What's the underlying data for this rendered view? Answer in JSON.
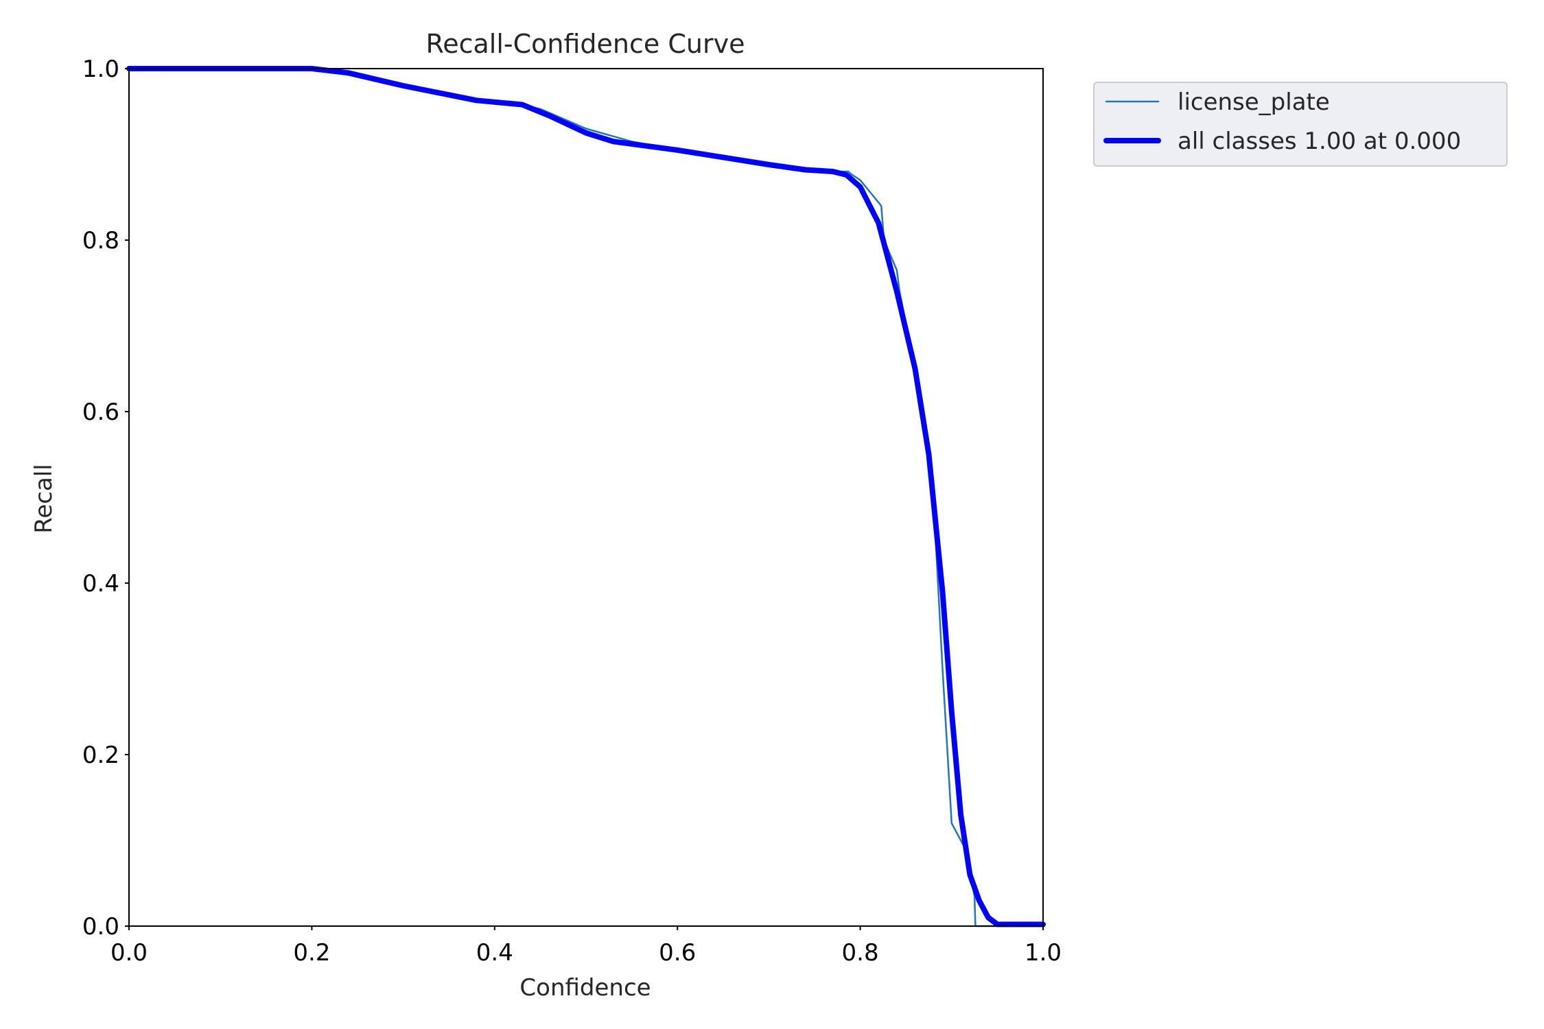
{
  "chart_data": {
    "type": "line",
    "title": "Recall-Confidence Curve",
    "xlabel": "Confidence",
    "ylabel": "Recall",
    "xlim": [
      0,
      1
    ],
    "ylim": [
      0,
      1
    ],
    "xticks": [
      "0.0",
      "0.2",
      "0.4",
      "0.6",
      "0.8",
      "1.0"
    ],
    "yticks": [
      "0.0",
      "0.2",
      "0.4",
      "0.6",
      "0.8",
      "1.0"
    ],
    "grid": false,
    "legend_position": "outside-top-right",
    "series": [
      {
        "name": "license_plate",
        "color": "#1f77b4",
        "x": [
          0.0,
          0.2,
          0.24,
          0.3,
          0.38,
          0.42,
          0.45,
          0.5,
          0.55,
          0.6,
          0.7,
          0.74,
          0.787,
          0.79,
          0.8,
          0.823,
          0.826,
          0.84,
          0.843,
          0.86,
          0.87,
          0.88,
          0.883,
          0.89,
          0.9,
          0.915,
          0.925,
          0.926,
          0.93,
          0.95,
          1.0
        ],
        "y": [
          1.0,
          1.0,
          0.995,
          0.98,
          0.963,
          0.96,
          0.953,
          0.93,
          0.915,
          0.905,
          0.887,
          0.88,
          0.88,
          0.877,
          0.87,
          0.84,
          0.8,
          0.765,
          0.74,
          0.65,
          0.59,
          0.52,
          0.44,
          0.3,
          0.12,
          0.09,
          0.035,
          0.0,
          0.0,
          0.0,
          0.0
        ]
      },
      {
        "name": "all classes 1.00 at 0.000",
        "color": "#0000ff",
        "x": [
          0.0,
          0.2,
          0.24,
          0.3,
          0.38,
          0.4,
          0.43,
          0.46,
          0.5,
          0.53,
          0.6,
          0.7,
          0.74,
          0.77,
          0.785,
          0.8,
          0.82,
          0.84,
          0.86,
          0.875,
          0.89,
          0.9,
          0.91,
          0.92,
          0.93,
          0.94,
          0.95,
          0.96,
          1.0
        ],
        "y": [
          1.0,
          1.0,
          0.995,
          0.98,
          0.963,
          0.961,
          0.958,
          0.945,
          0.925,
          0.915,
          0.905,
          0.888,
          0.882,
          0.88,
          0.876,
          0.862,
          0.82,
          0.74,
          0.65,
          0.55,
          0.39,
          0.25,
          0.13,
          0.06,
          0.03,
          0.01,
          0.002,
          0.002,
          0.002
        ]
      }
    ]
  }
}
